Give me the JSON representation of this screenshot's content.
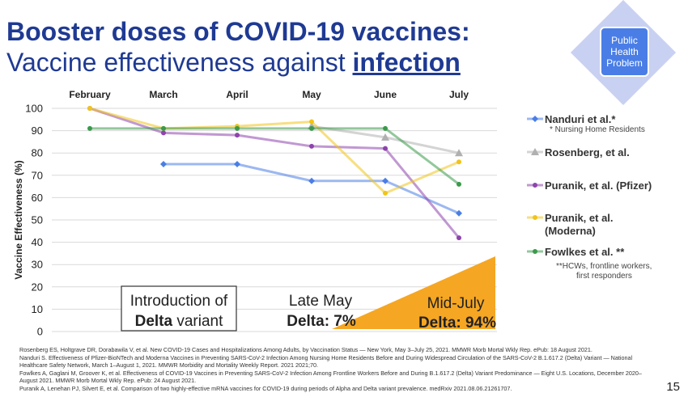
{
  "title": {
    "line1": "Booster doses of COVID-19 vaccines:",
    "line2_prefix": "Vaccine effectiveness against ",
    "line2_emph": "infection"
  },
  "badge": {
    "text": "Public\nHealth\nProblem"
  },
  "chart_data": {
    "type": "line",
    "x": [
      "February",
      "March",
      "April",
      "May",
      "June",
      "July"
    ],
    "ylabel": "Vaccine Effectiveness (%)",
    "ylim": [
      0,
      100
    ],
    "yticks": [
      0,
      10,
      20,
      30,
      40,
      50,
      60,
      70,
      80,
      90,
      100
    ],
    "grid": true,
    "legend_position": "right",
    "series": [
      {
        "name": "Nanduri et al.*",
        "note": "* Nursing Home Residents",
        "color": "#4a7ee6",
        "marker": "diamond",
        "values": [
          null,
          75,
          75,
          67.5,
          67.5,
          53
        ]
      },
      {
        "name": "Rosenberg, et al.",
        "note": "",
        "color": "#b0b0b0",
        "marker": "triangle",
        "values": [
          null,
          null,
          null,
          92,
          87,
          80
        ]
      },
      {
        "name": "Puranik, et al. (Pfizer)",
        "note": "",
        "color": "#8e44ad",
        "marker": "circle",
        "values": [
          100,
          89,
          88,
          83,
          82,
          42
        ]
      },
      {
        "name": "Puranik, et al. (Moderna)",
        "note": "",
        "color": "#f0c419",
        "marker": "circle",
        "values": [
          100,
          91,
          92,
          94,
          62,
          76
        ]
      },
      {
        "name": "Fowlkes et al. **",
        "note": "**HCWs, frontline workers, first responders",
        "color": "#3a9a4a",
        "marker": "circle",
        "values": [
          91,
          91,
          91,
          91,
          91,
          66
        ]
      }
    ],
    "annotations": {
      "delta_intro": {
        "line1": "Introduction of",
        "bold": "Delta",
        "rest": " variant"
      },
      "late_may": {
        "line1": "Late May",
        "line2": "Delta: 7%"
      },
      "mid_july": {
        "line1": "Mid-July",
        "line2": "Delta: 94%"
      }
    }
  },
  "references": [
    "Rosenberg ES, Holtgrave DR, Dorabawila V, et al. New COVID-19 Cases and Hospitalizations Among Adults, by Vaccination Status — New York, May 3–July 25, 2021. MMWR Morb Mortal Wkly Rep. ePub: 18 August 2021.",
    "Nanduri S. Effectiveness of Pfizer-BioNTech and Moderna Vaccines in Preventing SARS-CoV-2 Infection Among Nursing Home Residents Before and During Widespread Circulation of the SARS-CoV-2 B.1.617.2 (Delta) Variant — National Healthcare Safety Network, March 1–August 1, 2021. MMWR Morbidity and Mortality Weekly Report. 2021 2021;70.",
    "Fowlkes A, Gaglani M, Groover K, et al. Effectiveness of COVID-19 Vaccines in Preventing SARS-CoV-2 Infection Among Frontline Workers Before and During B.1.617.2 (Delta) Variant Predominance — Eight U.S. Locations, December 2020–August 2021. MMWR Morb Mortal Wkly Rep. ePub: 24 August 2021.",
    "Puranik A, Lenehan PJ, Silvert E, et al. Comparison of two highly-effective mRNA vaccines for COVID-19 during periods of Alpha and Delta variant prevalence. medRxiv 2021.08.06.21261707."
  ],
  "page_number": "15"
}
